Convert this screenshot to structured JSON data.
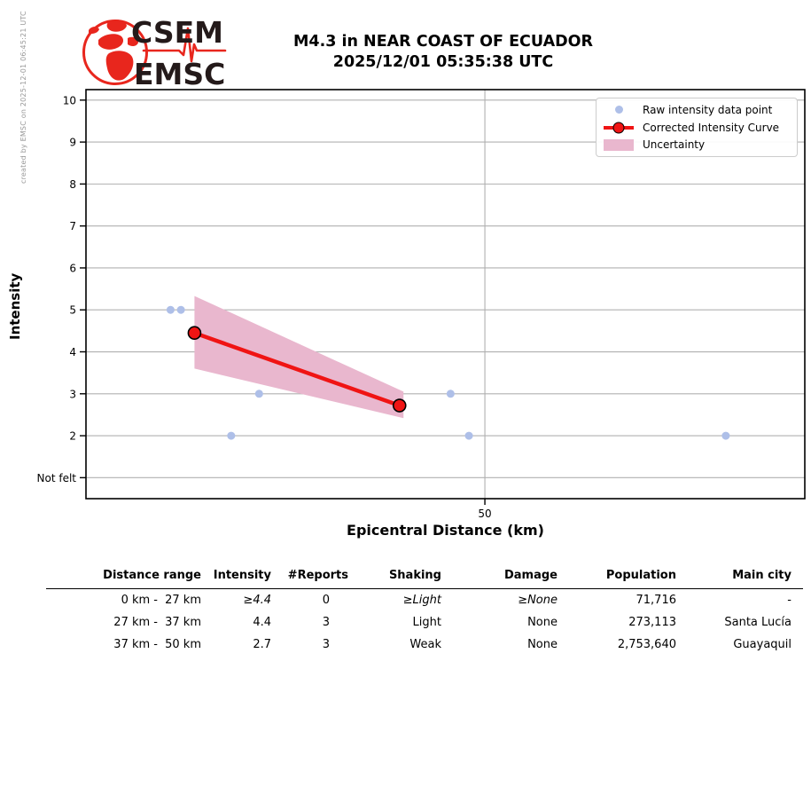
{
  "watermark": "created by EMSC on 2025-12-01 06:45:21 UTC",
  "logo": {
    "line1": "CSEM",
    "line2": "EMSC"
  },
  "title": {
    "line1": "M4.3 in NEAR COAST OF ECUADOR",
    "line2": "2025/12/01 05:35:38 UTC"
  },
  "chart_data": {
    "type": "line+scatter",
    "title": "M4.3 in NEAR COAST OF ECUADOR 2025/12/01 05:35:38 UTC",
    "xlabel": "Epicentral Distance (km)",
    "ylabel": "Intensity",
    "xlim": [
      0,
      90.1
    ],
    "ylim": [
      0.5,
      10.25
    ],
    "grid": true,
    "legend_position": "upper right",
    "x_ticks": [
      {
        "value": 50,
        "label": "50"
      }
    ],
    "y_ticks": [
      {
        "value": 1,
        "label": "Not felt"
      },
      {
        "value": 2,
        "label": "2"
      },
      {
        "value": 3,
        "label": "3"
      },
      {
        "value": 4,
        "label": "4"
      },
      {
        "value": 5,
        "label": "5"
      },
      {
        "value": 6,
        "label": "6"
      },
      {
        "value": 7,
        "label": "7"
      },
      {
        "value": 8,
        "label": "8"
      },
      {
        "value": 9,
        "label": "9"
      },
      {
        "value": 10,
        "label": "10"
      }
    ],
    "legend": [
      {
        "label": "Raw intensity data point",
        "swatch": "dot"
      },
      {
        "label": "Corrected Intensity Curve",
        "swatch": "line-marker"
      },
      {
        "label": "Uncertainty",
        "swatch": "band"
      }
    ],
    "raw_points": [
      {
        "km": 10.6,
        "intensity": 5
      },
      {
        "km": 11.9,
        "intensity": 5
      },
      {
        "km": 18.2,
        "intensity": 2
      },
      {
        "km": 21.7,
        "intensity": 3
      },
      {
        "km": 45.7,
        "intensity": 3
      },
      {
        "km": 48.0,
        "intensity": 2
      },
      {
        "km": 80.2,
        "intensity": 2
      }
    ],
    "corrected_curve": [
      {
        "km": 13.6,
        "intensity": 4.45
      },
      {
        "km": 39.3,
        "intensity": 2.72
      }
    ],
    "uncertainty_band": [
      {
        "km": 13.6,
        "upper": 5.33,
        "lower": 3.6
      },
      {
        "km": 39.8,
        "upper": 3.05,
        "lower": 2.42
      }
    ],
    "colors": {
      "raw_point": "#aebfe8",
      "curve": "#f01414",
      "band": "#e9b7ce",
      "grid": "#b0b0b0",
      "axis": "#000000",
      "logo_red": "#e8261d",
      "logo_text": "#241a1a",
      "watermark": "#999999"
    }
  },
  "table": {
    "headers": [
      {
        "label": "Distance range",
        "span": [
          0,
          1
        ]
      },
      {
        "label": "Intensity",
        "span": [
          2,
          2
        ]
      },
      {
        "label": "#Reports",
        "span": [
          3,
          3
        ]
      },
      {
        "label": "Shaking",
        "span": [
          4,
          4
        ]
      },
      {
        "label": "Damage",
        "span": [
          5,
          5
        ]
      },
      {
        "label": "Population",
        "span": [
          6,
          6
        ]
      },
      {
        "label": "Main city",
        "span": [
          7,
          7
        ]
      }
    ],
    "rows": [
      {
        "cells": [
          "0 km -",
          "27 km",
          "≥4.4",
          "0",
          "≥Light",
          "≥None",
          "71,716",
          "-"
        ]
      },
      {
        "cells": [
          "27 km -",
          "37 km",
          "4.4",
          "3",
          "Light",
          "None",
          "273,113",
          "Santa Lucía"
        ]
      },
      {
        "cells": [
          "37 km -",
          "50 km",
          "2.7",
          "3",
          "Weak",
          "None",
          "2,753,640",
          "Guayaquil"
        ]
      }
    ]
  }
}
